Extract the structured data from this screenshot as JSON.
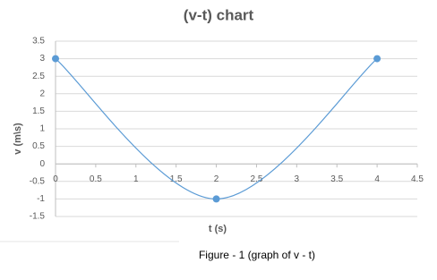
{
  "chart_data": {
    "type": "line",
    "smooth": true,
    "markers": true,
    "title": "(v-t) chart",
    "x_label": "t (s)",
    "y_label": "v (m\\s)",
    "series": [
      {
        "color": "#5b9bd5",
        "x": [
          0,
          2,
          4
        ],
        "values": [
          3,
          -1,
          3
        ]
      }
    ],
    "xlim": [
      0,
      4.5
    ],
    "xticks": [
      0,
      0.5,
      1,
      1.5,
      2,
      2.5,
      3,
      3.5,
      4,
      4.5
    ],
    "ylim": [
      -1.5,
      3.5
    ],
    "yticks": [
      -1.5,
      -1,
      -0.5,
      0,
      0.5,
      1,
      1.5,
      2,
      2.5,
      3,
      3.5
    ],
    "grid": true
  },
  "caption": "Figure - 1 (graph of v - t)"
}
